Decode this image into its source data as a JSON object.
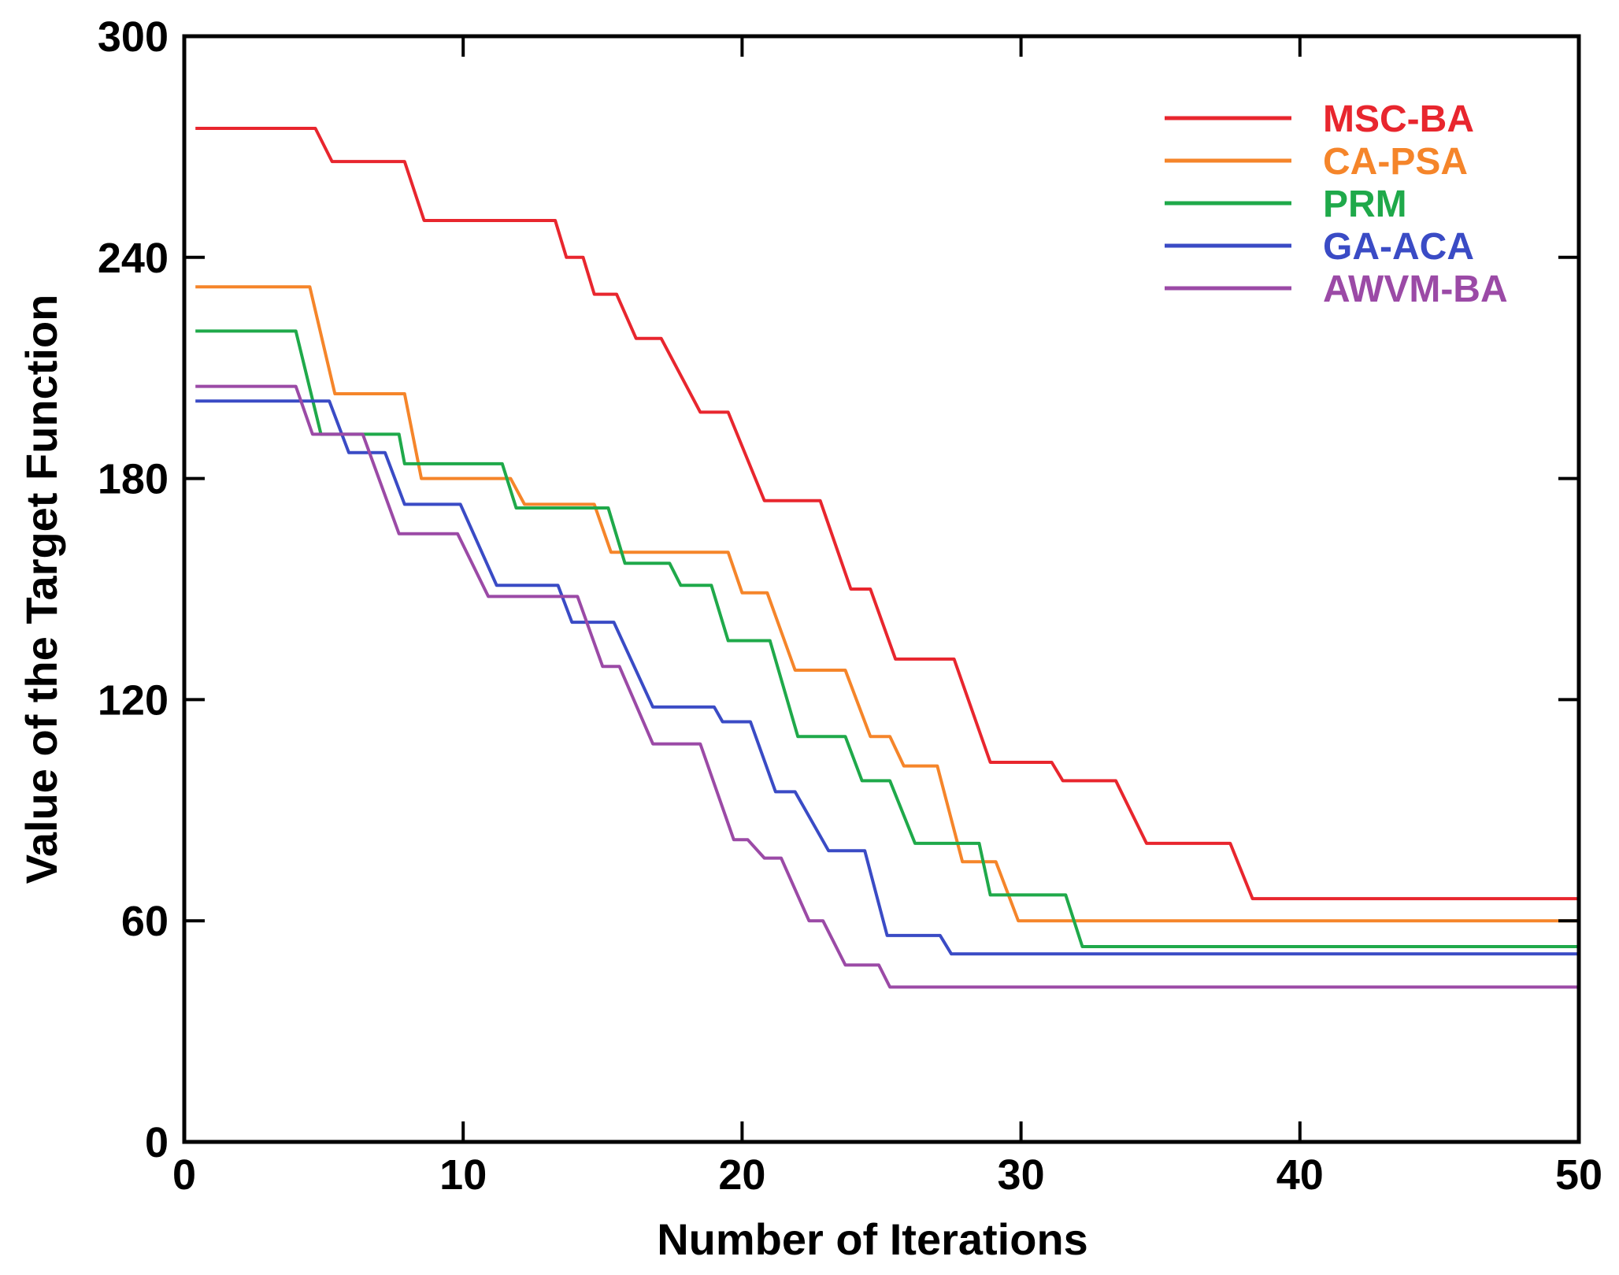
{
  "chart_data": {
    "type": "line",
    "title": "",
    "xlabel": "Number of Iterations",
    "ylabel": "Value of the Target Function",
    "xlim": [
      0,
      50
    ],
    "ylim": [
      0,
      300
    ],
    "xticks": [
      "0",
      "10",
      "20",
      "30",
      "40",
      "50"
    ],
    "yticks": [
      "0",
      "60",
      "120",
      "180",
      "240",
      "300"
    ],
    "grid": false,
    "legend_position": "top-right",
    "series": [
      {
        "name": "MSC-BA",
        "color": "#e8262e",
        "points": [
          [
            0.4,
            275
          ],
          [
            4.7,
            275
          ],
          [
            5.3,
            266
          ],
          [
            7.9,
            266
          ],
          [
            8.6,
            250
          ],
          [
            13.3,
            250
          ],
          [
            13.7,
            240
          ],
          [
            14.3,
            240
          ],
          [
            14.7,
            230
          ],
          [
            15.5,
            230
          ],
          [
            16.2,
            218
          ],
          [
            17.1,
            218
          ],
          [
            18.5,
            198
          ],
          [
            19.5,
            198
          ],
          [
            20.8,
            174
          ],
          [
            22.8,
            174
          ],
          [
            23.9,
            150
          ],
          [
            24.6,
            150
          ],
          [
            25.5,
            131
          ],
          [
            27.6,
            131
          ],
          [
            28.9,
            103
          ],
          [
            31.1,
            103
          ],
          [
            31.5,
            98
          ],
          [
            33.4,
            98
          ],
          [
            34.5,
            81
          ],
          [
            37.5,
            81
          ],
          [
            38.3,
            66
          ],
          [
            50,
            66
          ]
        ]
      },
      {
        "name": "CA-PSA",
        "color": "#f5852a",
        "points": [
          [
            0.4,
            232
          ],
          [
            4.5,
            232
          ],
          [
            5.4,
            203
          ],
          [
            7.9,
            203
          ],
          [
            8.5,
            180
          ],
          [
            11.7,
            180
          ],
          [
            12.2,
            173
          ],
          [
            14.7,
            173
          ],
          [
            15.3,
            160
          ],
          [
            19.5,
            160
          ],
          [
            20.0,
            149
          ],
          [
            20.9,
            149
          ],
          [
            21.9,
            128
          ],
          [
            23.7,
            128
          ],
          [
            24.6,
            110
          ],
          [
            25.3,
            110
          ],
          [
            25.8,
            102
          ],
          [
            27.0,
            102
          ],
          [
            27.9,
            76
          ],
          [
            29.1,
            76
          ],
          [
            29.9,
            60
          ],
          [
            50,
            60
          ]
        ]
      },
      {
        "name": "PRM",
        "color": "#1fa94a",
        "points": [
          [
            0.4,
            220
          ],
          [
            4.0,
            220
          ],
          [
            4.9,
            192
          ],
          [
            7.7,
            192
          ],
          [
            7.9,
            184
          ],
          [
            11.4,
            184
          ],
          [
            11.9,
            172
          ],
          [
            15.2,
            172
          ],
          [
            15.8,
            157
          ],
          [
            17.4,
            157
          ],
          [
            17.8,
            151
          ],
          [
            18.9,
            151
          ],
          [
            19.5,
            136
          ],
          [
            21.0,
            136
          ],
          [
            22.0,
            110
          ],
          [
            23.7,
            110
          ],
          [
            24.3,
            98
          ],
          [
            25.3,
            98
          ],
          [
            26.2,
            81
          ],
          [
            28.5,
            81
          ],
          [
            28.9,
            67
          ],
          [
            31.6,
            67
          ],
          [
            32.2,
            53
          ],
          [
            50,
            53
          ]
        ]
      },
      {
        "name": "GA-ACA",
        "color": "#3a4bc5",
        "points": [
          [
            0.4,
            201
          ],
          [
            5.2,
            201
          ],
          [
            5.9,
            187
          ],
          [
            7.2,
            187
          ],
          [
            7.9,
            173
          ],
          [
            9.9,
            173
          ],
          [
            11.2,
            151
          ],
          [
            13.4,
            151
          ],
          [
            13.9,
            141
          ],
          [
            15.4,
            141
          ],
          [
            16.8,
            118
          ],
          [
            19.0,
            118
          ],
          [
            19.3,
            114
          ],
          [
            20.3,
            114
          ],
          [
            21.2,
            95
          ],
          [
            21.9,
            95
          ],
          [
            23.1,
            79
          ],
          [
            24.4,
            79
          ],
          [
            25.2,
            56
          ],
          [
            27.1,
            56
          ],
          [
            27.5,
            51
          ],
          [
            50,
            51
          ]
        ]
      },
      {
        "name": "AWVM-BA",
        "color": "#9b4aa6",
        "points": [
          [
            0.4,
            205
          ],
          [
            4.0,
            205
          ],
          [
            4.6,
            192
          ],
          [
            6.4,
            192
          ],
          [
            7.7,
            165
          ],
          [
            9.8,
            165
          ],
          [
            10.9,
            148
          ],
          [
            14.1,
            148
          ],
          [
            15.0,
            129
          ],
          [
            15.6,
            129
          ],
          [
            16.8,
            108
          ],
          [
            18.5,
            108
          ],
          [
            19.7,
            82
          ],
          [
            20.2,
            82
          ],
          [
            20.8,
            77
          ],
          [
            21.4,
            77
          ],
          [
            22.4,
            60
          ],
          [
            22.9,
            60
          ],
          [
            23.7,
            48
          ],
          [
            24.9,
            48
          ],
          [
            25.3,
            42
          ],
          [
            50,
            42
          ]
        ]
      }
    ]
  }
}
